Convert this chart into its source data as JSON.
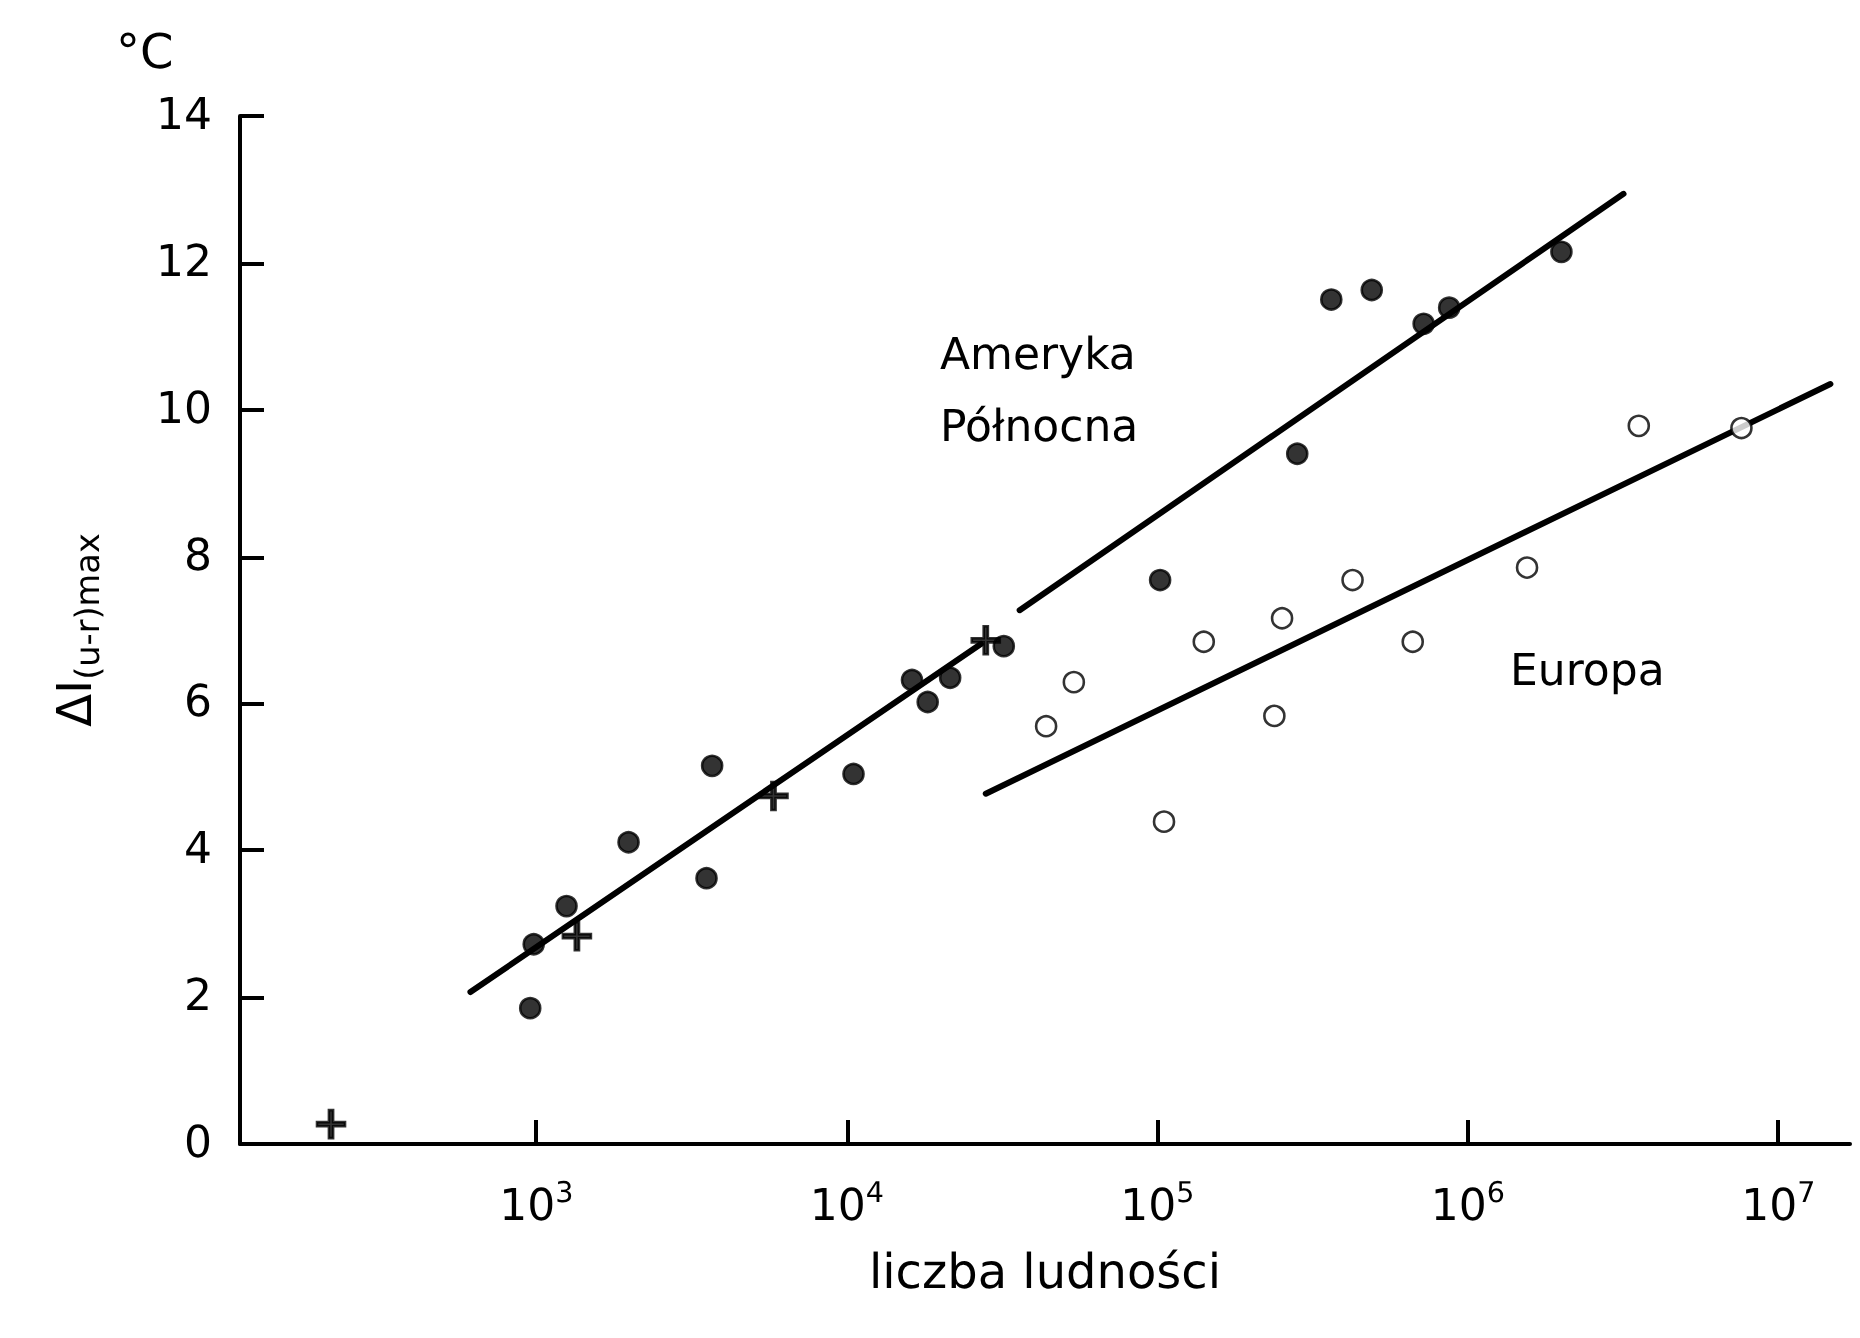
{
  "chart_data": {
    "type": "scatter",
    "xlabel": "liczba ludności",
    "ylabel": "ΔI$_{(u-r)max}$",
    "log": "x",
    "grid": false,
    "xlim": [
      111,
      17000000
    ],
    "ylim": [
      0,
      14
    ],
    "xticks": [
      {
        "value": 1000,
        "label": "10$^{3}$"
      },
      {
        "value": 10000,
        "label": "10$^{4}$"
      },
      {
        "value": 100000,
        "label": "10$^{5}$"
      },
      {
        "value": 1000000,
        "label": "10$^{6}$"
      },
      {
        "value": 10000000,
        "label": "10$^{7}$"
      }
    ],
    "yticks": [
      0,
      2,
      4,
      6,
      8,
      10,
      12,
      14
    ],
    "annotations": [
      "°C",
      "Ameryka\nPółnocna",
      "Europa"
    ],
    "series": [
      {
        "marker": "circle",
        "color": "#000000",
        "x": [
          955,
          980,
          1250,
          1980,
          3680,
          3530,
          10500,
          16200,
          18200,
          21500,
          32000,
          102000,
          282000,
          363000,
          490000,
          720000,
          870000,
          2000000
        ],
        "values": [
          1.85,
          2.72,
          3.24,
          4.11,
          5.15,
          3.62,
          5.04,
          6.32,
          6.02,
          6.35,
          6.78,
          7.68,
          9.4,
          11.5,
          11.63,
          11.17,
          11.39,
          12.15
        ]
      },
      {
        "marker": "cross",
        "color": "#000000",
        "x": [
          218,
          1350,
          5800,
          28000
        ],
        "values": [
          0.27,
          2.83,
          4.74,
          6.86
        ]
      },
      {
        "marker": "circle",
        "color": "#ffffff",
        "x": [
          43800,
          53800,
          105000,
          141000,
          238000,
          252000,
          425000,
          664000,
          1550000,
          3550000,
          7600000
        ],
        "values": [
          5.69,
          6.29,
          4.39,
          6.84,
          5.83,
          7.16,
          7.68,
          6.84,
          7.85,
          9.78,
          9.75
        ]
      },
      {
        "type": "line",
        "marker": "none",
        "color": "#000000",
        "x": [
          613,
          27000,
          30000,
          36000,
          3170000
        ],
        "values": [
          2.07,
          6.81,
          null,
          7.27,
          12.94
        ]
      },
      {
        "type": "line",
        "marker": "none",
        "color": "#000000",
        "x": [
          28000,
          14700000
        ],
        "values": [
          4.77,
          10.35
        ]
      }
    ]
  }
}
